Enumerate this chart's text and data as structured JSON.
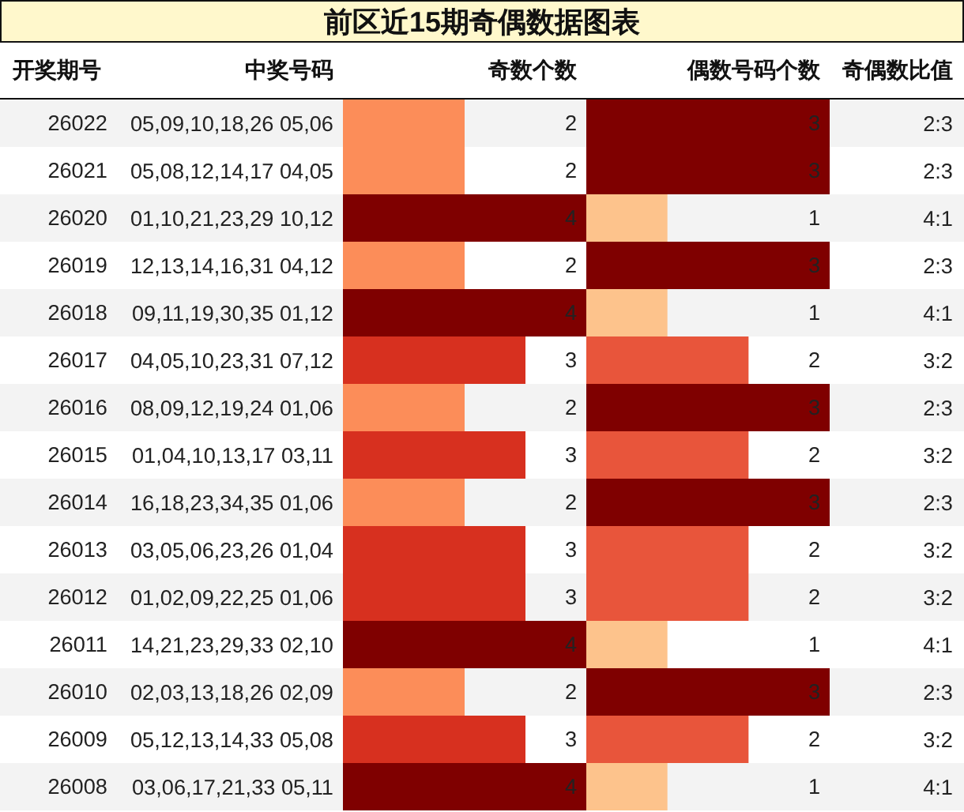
{
  "chart_data": [
    {
      "type": "bar",
      "orientation": "horizontal",
      "title": "前区近15期奇偶数据图表",
      "ylabel": "开奖期号",
      "xlabel": "奇数个数",
      "tick_labels": "y",
      "data_labels": true,
      "xlim": [
        0,
        4
      ],
      "categories": [
        "26022",
        "26021",
        "26020",
        "26019",
        "26018",
        "26017",
        "26016",
        "26015",
        "26014",
        "26013",
        "26012",
        "26011",
        "26010",
        "26009",
        "26008"
      ],
      "values": [
        2,
        2,
        4,
        2,
        4,
        3,
        2,
        3,
        2,
        3,
        3,
        4,
        2,
        3,
        4
      ],
      "colors": [
        "#fc8d59",
        "#fc8d59",
        "#7f0000",
        "#fc8d59",
        "#7f0000",
        "#d7301f",
        "#fc8d59",
        "#d7301f",
        "#fc8d59",
        "#d7301f",
        "#d7301f",
        "#7f0000",
        "#fc8d59",
        "#d7301f",
        "#7f0000"
      ],
      "annotations": [
        "中奖号码",
        "05,09,10,18,26 05,06",
        "05,08,12,14,17 04,05",
        "01,10,21,23,29 10,12",
        "12,13,14,16,31 04,12",
        "09,11,19,30,35 01,12",
        "04,05,10,23,31 07,12",
        "08,09,12,19,24 01,06",
        "01,04,10,13,17 03,11",
        "16,18,23,34,35 01,06",
        "03,05,06,23,26 01,04",
        "01,02,09,22,25 01,06",
        "14,21,23,29,33 02,10",
        "02,03,13,18,26 02,09",
        "05,12,13,14,33 05,08",
        "03,06,17,21,33 05,11"
      ]
    },
    {
      "type": "bar",
      "orientation": "horizontal",
      "xlabel": "偶数号码个数",
      "tick_labels": false,
      "data_labels": true,
      "xlim": [
        0,
        3
      ],
      "categories": [
        "26022",
        "26021",
        "26020",
        "26019",
        "26018",
        "26017",
        "26016",
        "26015",
        "26014",
        "26013",
        "26012",
        "26011",
        "26010",
        "26009",
        "26008"
      ],
      "values": [
        3,
        3,
        1,
        3,
        1,
        2,
        3,
        2,
        3,
        2,
        2,
        1,
        3,
        2,
        1
      ],
      "colors": [
        "#7f0000",
        "#7f0000",
        "#fdc38c",
        "#7f0000",
        "#fdc38c",
        "#e8553b",
        "#7f0000",
        "#e8553b",
        "#7f0000",
        "#e8553b",
        "#e8553b",
        "#fdc38c",
        "#7f0000",
        "#e8553b",
        "#fdc38c"
      ],
      "annotations": [
        "奇偶数比值",
        "2:3",
        "2:3",
        "4:1",
        "2:3",
        "4:1",
        "3:2",
        "2:3",
        "3:2",
        "2:3",
        "3:2",
        "3:2",
        "4:1",
        "2:3",
        "3:2",
        "4:1"
      ]
    }
  ]
}
